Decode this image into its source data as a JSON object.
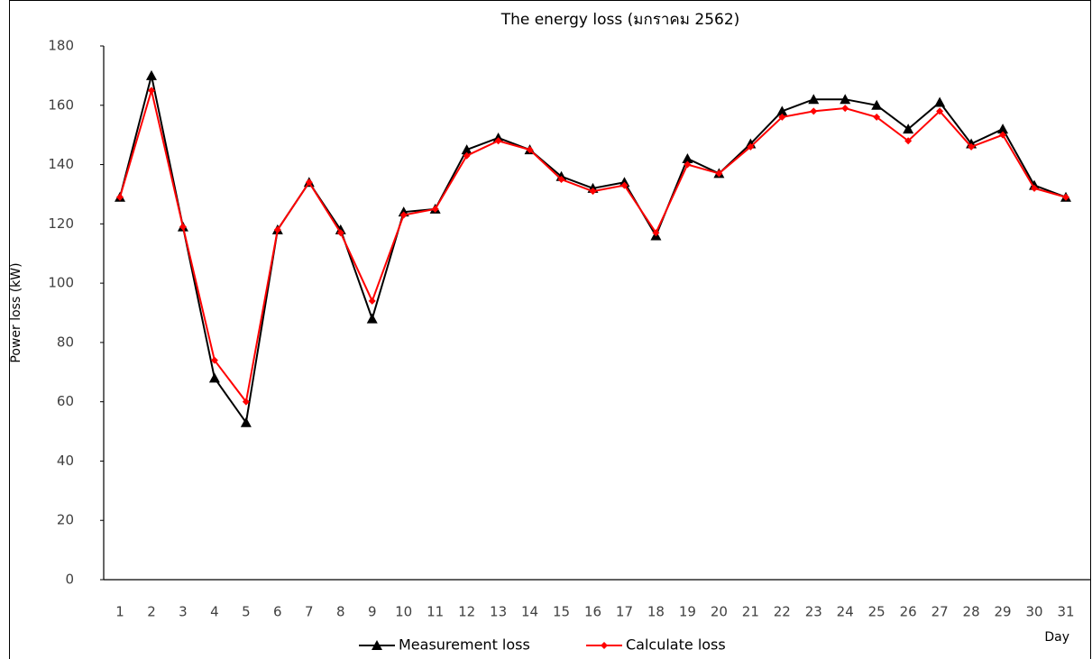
{
  "chart_data": {
    "type": "line",
    "title": "The energy loss (มกราคม 2562)",
    "y_label": "Power loss (kW)",
    "x_label": "Day",
    "categories": [
      "1",
      "2",
      "3",
      "4",
      "5",
      "6",
      "7",
      "8",
      "9",
      "10",
      "11",
      "12",
      "13",
      "14",
      "15",
      "16",
      "17",
      "18",
      "19",
      "20",
      "21",
      "22",
      "23",
      "24",
      "25",
      "26",
      "27",
      "28",
      "29",
      "30",
      "31"
    ],
    "series": [
      {
        "name": "Measurement loss",
        "color": "#000000",
        "marker": "triangle",
        "values": [
          129,
          170,
          119,
          68,
          53,
          118,
          134,
          118,
          88,
          124,
          125,
          145,
          149,
          145,
          136,
          132,
          134,
          116,
          142,
          137,
          147,
          158,
          162,
          162,
          160,
          152,
          161,
          147,
          152,
          133,
          129
        ]
      },
      {
        "name": "Calculate loss",
        "color": "#ff0000",
        "marker": "diamond",
        "values": [
          129,
          165,
          119,
          74,
          60,
          118,
          134,
          117,
          94,
          123,
          125,
          143,
          148,
          145,
          135,
          131,
          133,
          117,
          140,
          137,
          146,
          156,
          158,
          159,
          156,
          148,
          158,
          146,
          150,
          132,
          129
        ]
      }
    ],
    "ylim": [
      0,
      180
    ],
    "yticks": [
      0,
      20,
      40,
      60,
      80,
      100,
      120,
      140,
      160,
      180
    ],
    "grid": false,
    "legend": "bottom"
  }
}
